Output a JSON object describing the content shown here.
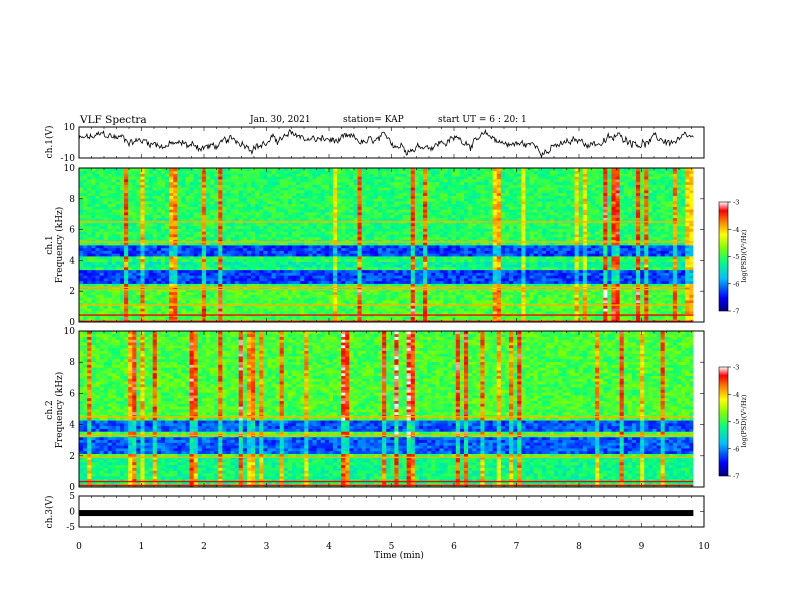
{
  "header": {
    "title": "VLF Spectra",
    "date": "Jan. 30, 2021",
    "station": "station= KAP",
    "start": "start  UT  =  6 : 20: 1"
  },
  "chart_data": [
    {
      "type": "line",
      "name": "ch1-waveform",
      "ylabel": "ch.1(V)",
      "ylim": [
        -10,
        10
      ],
      "y_ticks": [
        "10",
        "-10"
      ],
      "xlim": [
        0,
        9.83
      ]
    },
    {
      "type": "heatmap",
      "name": "ch1-spectrogram",
      "ylabel": "ch.1\nFrequency (kHz)",
      "ylabel_lines": [
        "ch.1",
        "Frequency  (kHz)"
      ],
      "ylim": [
        0,
        10
      ],
      "y_ticks": [
        "0",
        "2",
        "4",
        "6",
        "8",
        "10"
      ],
      "xlim": [
        0,
        9.83
      ],
      "colorbar": {
        "label": "log(PSD)(V²/Hz)",
        "range": [
          -7,
          -3
        ],
        "ticks": [
          "-3",
          "-4",
          "-5",
          "-6",
          "-7"
        ]
      }
    },
    {
      "type": "heatmap",
      "name": "ch2-spectrogram",
      "ylabel": "ch.2\nFrequency (kHz)",
      "ylabel_lines": [
        "ch.2",
        "Frequency  (kHz)"
      ],
      "ylim": [
        0,
        10
      ],
      "y_ticks": [
        "0",
        "2",
        "4",
        "6",
        "8",
        "10"
      ],
      "xlim": [
        0,
        9.83
      ],
      "colorbar": {
        "label": "log(PSD)(V²/Hz)",
        "range": [
          -7,
          -3
        ],
        "ticks": [
          "-3",
          "-4",
          "-5",
          "-6",
          "-7"
        ]
      }
    },
    {
      "type": "line",
      "name": "ch3-waveform",
      "ylabel": "ch.3(V)",
      "ylim": [
        -5,
        5
      ],
      "y_ticks": [
        "5",
        "0",
        "-5"
      ],
      "constant_value": -0.5,
      "xlim": [
        0,
        9.83
      ]
    }
  ],
  "x_axis": {
    "label": "Time  (min)",
    "range": [
      0,
      10
    ],
    "ticks": [
      "0",
      "1",
      "2",
      "3",
      "4",
      "5",
      "6",
      "7",
      "8",
      "9",
      "10"
    ]
  },
  "colors": {
    "colormap": [
      "#000080",
      "#0000ff",
      "#0080ff",
      "#00ffff",
      "#00ff00",
      "#ffff00",
      "#ff8000",
      "#ff0000",
      "#ffffff"
    ]
  }
}
